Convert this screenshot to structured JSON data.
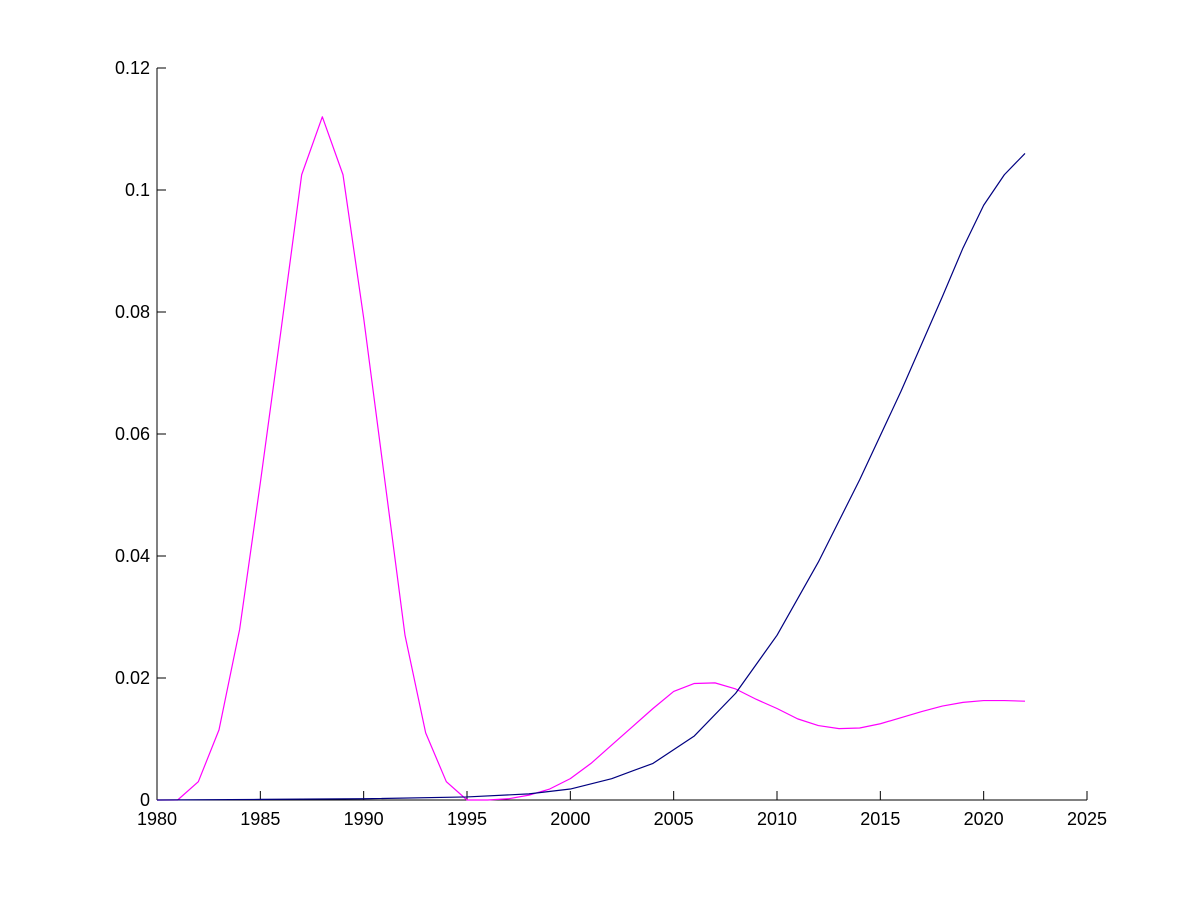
{
  "chart_data": {
    "type": "line",
    "title": "",
    "xlabel": "",
    "ylabel": "",
    "xlim": [
      1980,
      2025
    ],
    "ylim": [
      0,
      0.12
    ],
    "grid": false,
    "x_ticks": [
      1980,
      1985,
      1990,
      1995,
      2000,
      2005,
      2010,
      2015,
      2020,
      2025
    ],
    "x_tick_labels": [
      "1980",
      "1985",
      "1990",
      "1995",
      "2000",
      "2005",
      "2010",
      "2015",
      "2020",
      "2025"
    ],
    "y_ticks": [
      0,
      0.02,
      0.04,
      0.06,
      0.08,
      0.1,
      0.12
    ],
    "y_tick_labels": [
      "0",
      "0.02",
      "0.04",
      "0.06",
      "0.08",
      "0.1",
      "0.12"
    ],
    "series": [
      {
        "color": "#ff00ff",
        "points": [
          [
            1980,
            0
          ],
          [
            1981,
            0
          ],
          [
            1982,
            0.003
          ],
          [
            1983,
            0.0115
          ],
          [
            1984,
            0.028
          ],
          [
            1985,
            0.052
          ],
          [
            1986,
            0.077
          ],
          [
            1987,
            0.1025
          ],
          [
            1988,
            0.112
          ],
          [
            1989,
            0.1025
          ],
          [
            1990,
            0.079
          ],
          [
            1991,
            0.053
          ],
          [
            1992,
            0.027
          ],
          [
            1993,
            0.011
          ],
          [
            1994,
            0.003
          ],
          [
            1995,
            0
          ],
          [
            1996,
            0
          ],
          [
            1997,
            0.0002
          ],
          [
            1998,
            0.0008
          ],
          [
            1999,
            0.0018
          ],
          [
            2000,
            0.0035
          ],
          [
            2001,
            0.006
          ],
          [
            2002,
            0.009
          ],
          [
            2003,
            0.012
          ],
          [
            2004,
            0.015
          ],
          [
            2005,
            0.0178
          ],
          [
            2006,
            0.0191
          ],
          [
            2007,
            0.0192
          ],
          [
            2008,
            0.0182
          ],
          [
            2009,
            0.0165
          ],
          [
            2010,
            0.015
          ],
          [
            2011,
            0.0133
          ],
          [
            2012,
            0.0122
          ],
          [
            2013,
            0.0117
          ],
          [
            2014,
            0.0118
          ],
          [
            2015,
            0.0125
          ],
          [
            2016,
            0.0135
          ],
          [
            2017,
            0.0145
          ],
          [
            2018,
            0.0154
          ],
          [
            2019,
            0.016
          ],
          [
            2020,
            0.0163
          ],
          [
            2021,
            0.0163
          ],
          [
            2022,
            0.0162
          ]
        ]
      },
      {
        "color": "#000080",
        "points": [
          [
            1980,
            0
          ],
          [
            1985,
            0.0001
          ],
          [
            1990,
            0.0002
          ],
          [
            1995,
            0.0005
          ],
          [
            1998,
            0.001
          ],
          [
            2000,
            0.0018
          ],
          [
            2002,
            0.0035
          ],
          [
            2004,
            0.006
          ],
          [
            2006,
            0.0105
          ],
          [
            2008,
            0.0175
          ],
          [
            2010,
            0.027
          ],
          [
            2012,
            0.039
          ],
          [
            2014,
            0.0525
          ],
          [
            2016,
            0.067
          ],
          [
            2018,
            0.0825
          ],
          [
            2019,
            0.0905
          ],
          [
            2020,
            0.0975
          ],
          [
            2021,
            0.1025
          ],
          [
            2022,
            0.106
          ]
        ]
      }
    ]
  }
}
